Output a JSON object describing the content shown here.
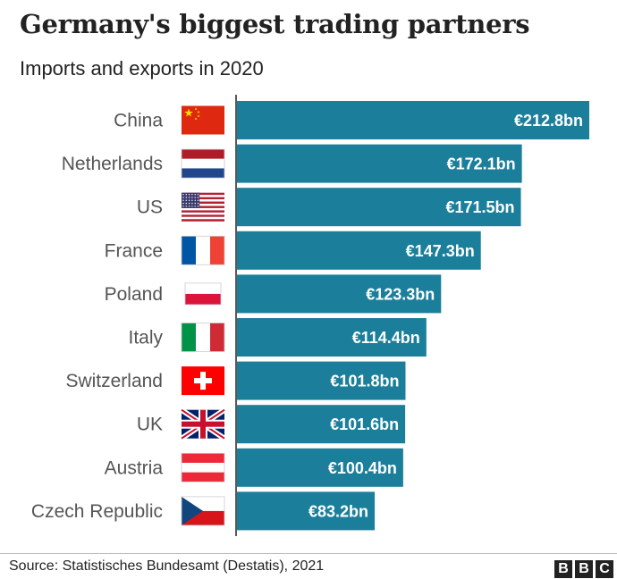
{
  "chart_data": {
    "type": "bar",
    "orientation": "horizontal",
    "title": "Germany's biggest trading partners",
    "subtitle": "Imports and exports in 2020",
    "categories": [
      "China",
      "Netherlands",
      "US",
      "France",
      "Poland",
      "Italy",
      "Switzerland",
      "UK",
      "Austria",
      "Czech Republic"
    ],
    "values": [
      212.8,
      172.1,
      171.5,
      147.3,
      123.3,
      114.4,
      101.8,
      101.6,
      100.4,
      83.2
    ],
    "value_labels": [
      "€212.8bn",
      "€172.1bn",
      "€171.5bn",
      "€147.3bn",
      "€123.3bn",
      "€114.4bn",
      "€101.8bn",
      "€101.6bn",
      "€100.4bn",
      "€83.2bn"
    ],
    "flag_icons": [
      "china-flag-icon",
      "netherlands-flag-icon",
      "us-flag-icon",
      "france-flag-icon",
      "poland-flag-icon",
      "italy-flag-icon",
      "switzerland-flag-icon",
      "uk-flag-icon",
      "austria-flag-icon",
      "czech-republic-flag-icon"
    ],
    "unit": "€bn",
    "xlim": [
      0,
      212.8
    ],
    "grid": false,
    "bar_color": "#1b7f9b",
    "label_color": "#ffffff"
  },
  "footer": {
    "source": "Source:  Statistisches Bundesamt (Destatis), 2021",
    "logo_letters": [
      "B",
      "B",
      "C"
    ]
  }
}
